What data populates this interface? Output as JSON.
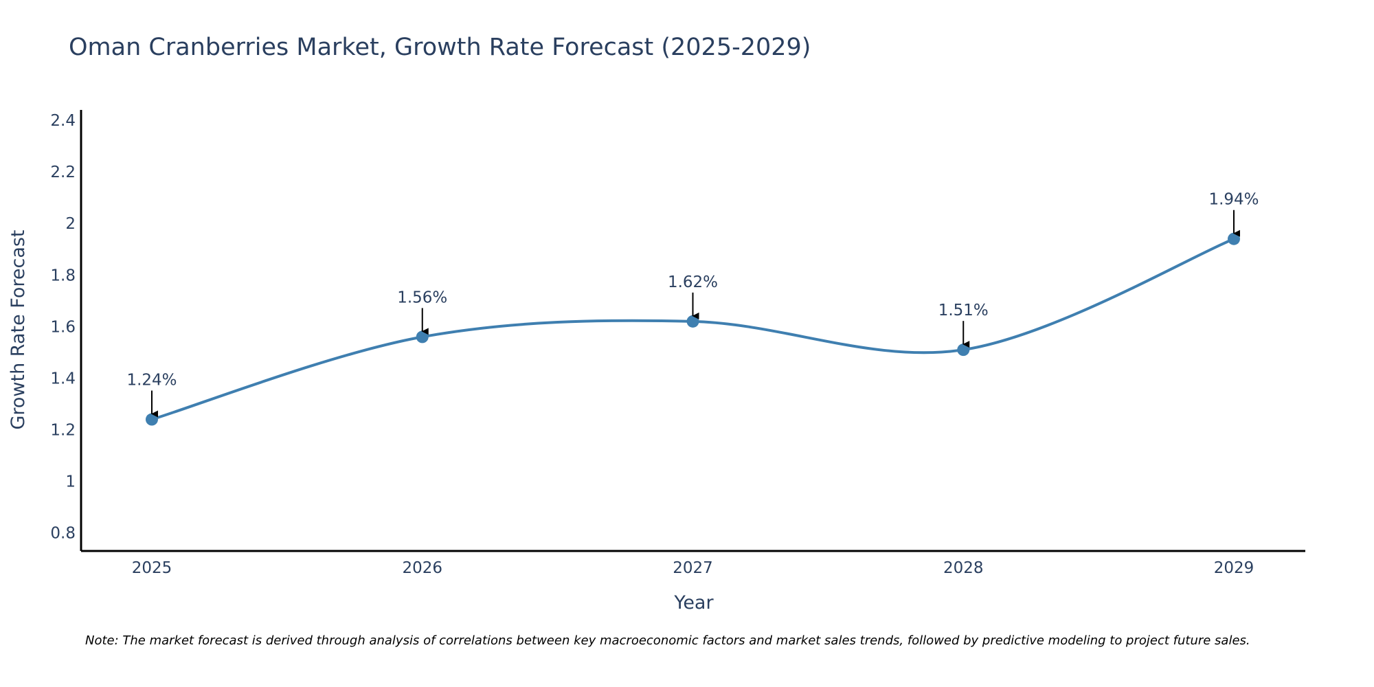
{
  "colors": {
    "line": "#3f7fb0",
    "marker": "#3f7fb0",
    "axis": "#000000",
    "text": "#2a3f5f",
    "arrow": "#000000"
  },
  "chart_data": {
    "type": "line",
    "title": "Oman Cranberries Market, Growth Rate Forecast (2025-2029)",
    "xlabel": "Year",
    "ylabel": "Growth Rate Forecast",
    "categories": [
      "2025",
      "2026",
      "2027",
      "2028",
      "2029"
    ],
    "series": [
      {
        "name": "Growth Rate Forecast",
        "values": [
          1.24,
          1.56,
          1.62,
          1.51,
          1.94
        ]
      }
    ],
    "data_labels": [
      "1.24%",
      "1.56%",
      "1.62%",
      "1.51%",
      "1.94%"
    ],
    "ylim": [
      0.73,
      2.44
    ],
    "yticks": [
      0.8,
      1,
      1.2,
      1.4,
      1.6,
      1.8,
      2,
      2.2,
      2.4
    ],
    "ytick_labels": [
      "0.8",
      "1",
      "1.2",
      "1.4",
      "1.6",
      "1.8",
      "2",
      "2.2",
      "2.4"
    ],
    "grid": false,
    "note": "Note: The market forecast is derived through analysis of correlations between key macroeconomic factors and market sales trends, followed by predictive modeling to project future sales."
  }
}
